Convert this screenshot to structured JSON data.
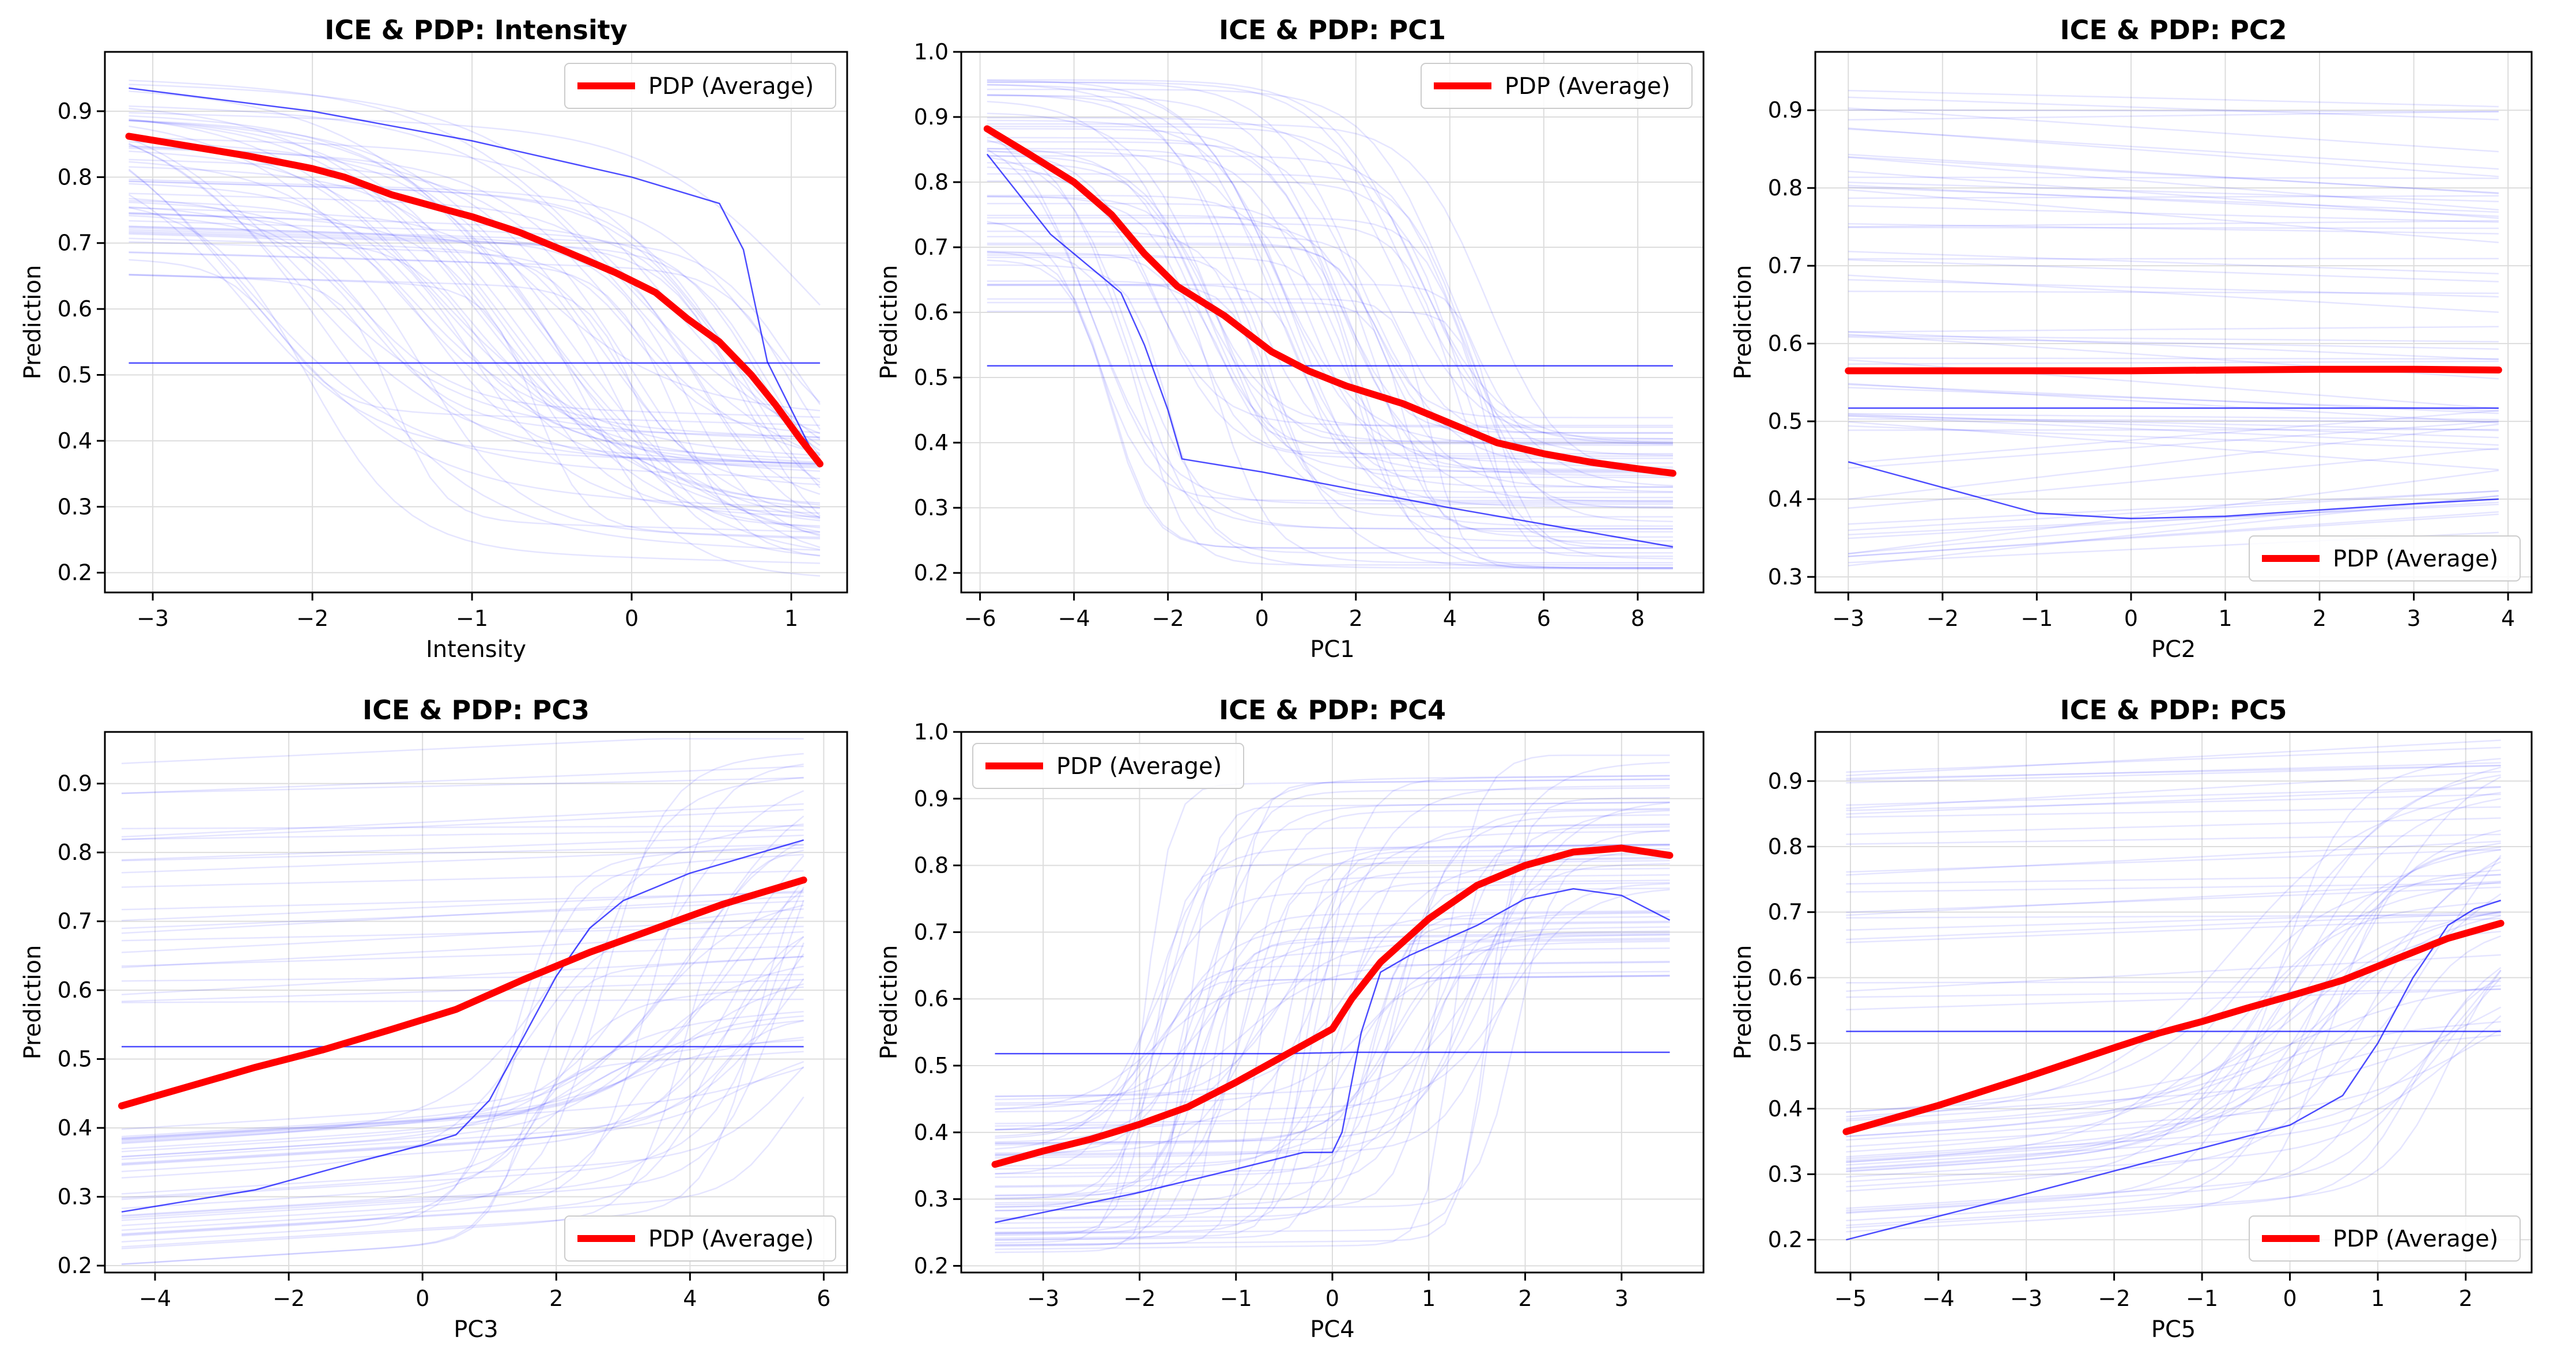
{
  "colors": {
    "pdp": "#ff0000",
    "ice": "#0000ff",
    "grid": "#dddddd",
    "frame": "#000000"
  },
  "ice_note": "Each panel also shows many faint blue ICE curves (one per sample) behind the PDP.",
  "chart_data": [
    {
      "type": "line",
      "title": "ICE & PDP: Intensity",
      "xlabel": "Intensity",
      "ylabel": "Prediction",
      "xlim": [
        -3.3,
        1.35
      ],
      "ylim": [
        0.17,
        0.99
      ],
      "xticks": [
        -3,
        -2,
        -1,
        0,
        1
      ],
      "yticks": [
        0.2,
        0.3,
        0.4,
        0.5,
        0.6,
        0.7,
        0.8,
        0.9
      ],
      "grid": true,
      "legend": "top-right",
      "series": [
        {
          "name": "PDP (Average)",
          "x": [
            -3.15,
            -2.8,
            -2.4,
            -2.0,
            -1.8,
            -1.5,
            -1.2,
            -1.0,
            -0.7,
            -0.4,
            -0.1,
            0.15,
            0.35,
            0.55,
            0.75,
            0.9,
            1.05,
            1.18
          ],
          "y": [
            0.862,
            0.848,
            0.832,
            0.813,
            0.8,
            0.773,
            0.753,
            0.74,
            0.716,
            0.686,
            0.655,
            0.625,
            0.585,
            0.55,
            0.5,
            0.455,
            0.405,
            0.365
          ]
        }
      ],
      "ice_highlight": [
        {
          "x": [
            -3.15,
            -2.0,
            -1.0,
            0.0,
            0.55,
            0.7,
            0.85,
            1.18
          ],
          "y": [
            0.935,
            0.9,
            0.855,
            0.8,
            0.76,
            0.69,
            0.52,
            0.36
          ]
        },
        {
          "x": [
            -3.15,
            0.0,
            0.45,
            1.18
          ],
          "y": [
            0.518,
            0.518,
            0.518,
            0.518
          ]
        }
      ],
      "ice_style": "intensity"
    },
    {
      "type": "line",
      "title": "ICE & PDP: PC1",
      "xlabel": "PC1",
      "ylabel": "Prediction",
      "xlim": [
        -6.4,
        9.4
      ],
      "ylim": [
        0.17,
        1.0
      ],
      "xticks": [
        -6,
        -4,
        -2,
        0,
        2,
        4,
        6,
        8
      ],
      "yticks": [
        0.2,
        0.3,
        0.4,
        0.5,
        0.6,
        0.7,
        0.8,
        0.9,
        1.0
      ],
      "grid": true,
      "legend": "top-right",
      "series": [
        {
          "name": "PDP (Average)",
          "x": [
            -5.85,
            -5.0,
            -4.0,
            -3.2,
            -2.5,
            -1.8,
            -0.8,
            0.2,
            1.0,
            1.8,
            3.0,
            4.0,
            5.0,
            6.0,
            7.0,
            8.0,
            8.75
          ],
          "y": [
            0.882,
            0.845,
            0.8,
            0.75,
            0.69,
            0.64,
            0.595,
            0.54,
            0.51,
            0.487,
            0.46,
            0.43,
            0.4,
            0.383,
            0.37,
            0.36,
            0.353
          ]
        }
      ],
      "ice_highlight": [
        {
          "x": [
            -5.85,
            -4.5,
            -3.0,
            -2.5,
            -2.0,
            -1.7,
            0.0,
            4.0,
            8.75
          ],
          "y": [
            0.843,
            0.72,
            0.63,
            0.55,
            0.45,
            0.375,
            0.355,
            0.3,
            0.24
          ]
        },
        {
          "x": [
            -5.85,
            8.75
          ],
          "y": [
            0.518,
            0.518
          ]
        }
      ],
      "ice_style": "pc1"
    },
    {
      "type": "line",
      "title": "ICE & PDP: PC2",
      "xlabel": "PC2",
      "ylabel": "Prediction",
      "xlim": [
        -3.35,
        4.25
      ],
      "ylim": [
        0.28,
        0.975
      ],
      "xticks": [
        -3,
        -2,
        -1,
        0,
        1,
        2,
        3,
        4
      ],
      "yticks": [
        0.3,
        0.4,
        0.5,
        0.6,
        0.7,
        0.8,
        0.9
      ],
      "grid": true,
      "legend": "bottom-right",
      "series": [
        {
          "name": "PDP (Average)",
          "x": [
            -3.0,
            -1.0,
            0.0,
            1.0,
            2.0,
            3.0,
            3.9
          ],
          "y": [
            0.565,
            0.565,
            0.565,
            0.566,
            0.567,
            0.567,
            0.566
          ]
        }
      ],
      "ice_highlight": [
        {
          "x": [
            -3.0,
            -2.0,
            -1.0,
            0.0,
            1.0,
            2.0,
            3.0,
            3.9
          ],
          "y": [
            0.448,
            0.415,
            0.382,
            0.375,
            0.378,
            0.386,
            0.394,
            0.4
          ]
        },
        {
          "x": [
            -3.0,
            3.9
          ],
          "y": [
            0.517,
            0.517
          ]
        }
      ],
      "ice_style": "flat"
    },
    {
      "type": "line",
      "title": "ICE & PDP: PC3",
      "xlabel": "PC3",
      "ylabel": "Prediction",
      "xlim": [
        -4.75,
        6.35
      ],
      "ylim": [
        0.19,
        0.975
      ],
      "xticks": [
        -4,
        -2,
        0,
        2,
        4,
        6
      ],
      "yticks": [
        0.2,
        0.3,
        0.4,
        0.5,
        0.6,
        0.7,
        0.8,
        0.9
      ],
      "grid": true,
      "legend": "bottom-right",
      "series": [
        {
          "name": "PDP (Average)",
          "x": [
            -4.5,
            -3.5,
            -2.5,
            -1.5,
            -0.5,
            0.5,
            1.5,
            2.5,
            3.5,
            4.5,
            5.7
          ],
          "y": [
            0.432,
            0.46,
            0.488,
            0.513,
            0.542,
            0.572,
            0.615,
            0.655,
            0.69,
            0.725,
            0.76
          ]
        }
      ],
      "ice_highlight": [
        {
          "x": [
            -4.5,
            -2.5,
            -1.0,
            0.0,
            0.5,
            1.0,
            1.5,
            2.0,
            2.5,
            3.0,
            4.0,
            5.7
          ],
          "y": [
            0.278,
            0.31,
            0.35,
            0.375,
            0.39,
            0.44,
            0.53,
            0.62,
            0.69,
            0.73,
            0.77,
            0.818
          ]
        },
        {
          "x": [
            -4.5,
            5.7
          ],
          "y": [
            0.518,
            0.518
          ]
        }
      ],
      "ice_style": "rising"
    },
    {
      "type": "line",
      "title": "ICE & PDP: PC4",
      "xlabel": "PC4",
      "ylabel": "Prediction",
      "xlim": [
        -3.85,
        3.85
      ],
      "ylim": [
        0.19,
        1.0
      ],
      "xticks": [
        -3,
        -2,
        -1,
        0,
        1,
        2,
        3
      ],
      "yticks": [
        0.2,
        0.3,
        0.4,
        0.5,
        0.6,
        0.7,
        0.8,
        0.9,
        1.0
      ],
      "grid": true,
      "legend": "top-left",
      "series": [
        {
          "name": "PDP (Average)",
          "x": [
            -3.5,
            -3.0,
            -2.5,
            -2.0,
            -1.5,
            -1.0,
            -0.5,
            0.0,
            0.2,
            0.5,
            1.0,
            1.5,
            2.0,
            2.5,
            3.0,
            3.5
          ],
          "y": [
            0.352,
            0.372,
            0.39,
            0.412,
            0.438,
            0.475,
            0.515,
            0.555,
            0.6,
            0.655,
            0.72,
            0.77,
            0.8,
            0.82,
            0.826,
            0.815
          ]
        }
      ],
      "ice_highlight": [
        {
          "x": [
            -3.5,
            -2.0,
            -1.0,
            -0.3,
            0.0,
            0.1,
            0.3,
            0.5,
            0.8,
            1.5,
            2.0,
            2.5,
            3.0,
            3.5
          ],
          "y": [
            0.265,
            0.31,
            0.345,
            0.37,
            0.37,
            0.4,
            0.55,
            0.64,
            0.665,
            0.71,
            0.75,
            0.765,
            0.755,
            0.718
          ]
        },
        {
          "x": [
            -3.5,
            -0.5,
            0.2,
            0.6,
            3.5
          ],
          "y": [
            0.518,
            0.518,
            0.52,
            0.52,
            0.52
          ]
        }
      ],
      "ice_style": "pc4"
    },
    {
      "type": "line",
      "title": "ICE & PDP: PC5",
      "xlabel": "PC5",
      "ylabel": "Prediction",
      "xlim": [
        -5.4,
        2.75
      ],
      "ylim": [
        0.15,
        0.975
      ],
      "xticks": [
        -5,
        -4,
        -3,
        -2,
        -1,
        0,
        1,
        2
      ],
      "yticks": [
        0.2,
        0.3,
        0.4,
        0.5,
        0.6,
        0.7,
        0.8,
        0.9
      ],
      "grid": true,
      "legend": "bottom-right",
      "series": [
        {
          "name": "PDP (Average)",
          "x": [
            -5.05,
            -4.0,
            -3.0,
            -2.0,
            -1.5,
            -1.0,
            -0.5,
            0.0,
            0.6,
            1.2,
            1.8,
            2.4
          ],
          "y": [
            0.365,
            0.405,
            0.448,
            0.493,
            0.515,
            0.533,
            0.553,
            0.572,
            0.596,
            0.628,
            0.66,
            0.683
          ]
        }
      ],
      "ice_highlight": [
        {
          "x": [
            -5.05,
            -3.0,
            -1.0,
            0.0,
            0.6,
            1.0,
            1.4,
            1.8,
            2.1,
            2.4
          ],
          "y": [
            0.2,
            0.27,
            0.34,
            0.375,
            0.42,
            0.5,
            0.6,
            0.68,
            0.705,
            0.718
          ]
        },
        {
          "x": [
            -5.05,
            2.4
          ],
          "y": [
            0.518,
            0.518
          ]
        }
      ],
      "ice_style": "rising"
    }
  ]
}
